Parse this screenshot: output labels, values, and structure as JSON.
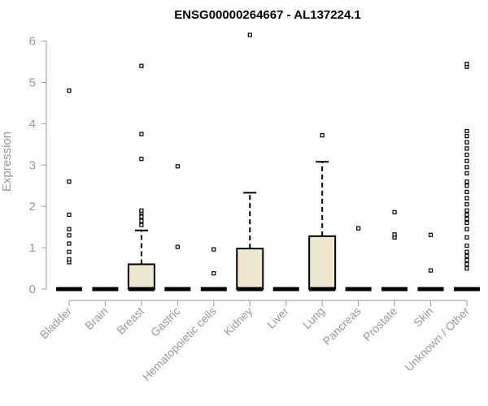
{
  "chart_data": {
    "type": "boxplot",
    "title": "ENSG00000264667 - AL137224.1",
    "ylabel": "Expression",
    "xlabel": "",
    "ylim": [
      0,
      6.2
    ],
    "yticks": [
      0,
      1,
      2,
      3,
      4,
      5,
      6
    ],
    "grid": false,
    "box_fill": "#efe7cf",
    "categories": [
      "Bladder",
      "Brain",
      "Breast",
      "Gastric",
      "Hematopoietic cells",
      "Kidney",
      "Liver",
      "Lung",
      "Pancreas",
      "Prostate",
      "Skin",
      "Unknown / Other"
    ],
    "boxes": [
      {
        "q1": 0,
        "median": 0,
        "q3": 0,
        "whisker_low": 0,
        "whisker_high": 0,
        "outliers": [
          0.65,
          0.72,
          0.9,
          1.1,
          1.3,
          1.45,
          1.8,
          2.6,
          4.8
        ]
      },
      {
        "q1": 0,
        "median": 0,
        "q3": 0,
        "whisker_low": 0,
        "whisker_high": 0,
        "outliers": []
      },
      {
        "q1": 0,
        "median": 0,
        "q3": 0.6,
        "whisker_low": 0,
        "whisker_high": 1.42,
        "outliers": [
          1.55,
          1.65,
          1.75,
          1.85,
          1.9,
          3.15,
          3.75,
          5.4
        ]
      },
      {
        "q1": 0,
        "median": 0,
        "q3": 0,
        "whisker_low": 0,
        "whisker_high": 0,
        "outliers": [
          1.02,
          2.97
        ]
      },
      {
        "q1": 0,
        "median": 0,
        "q3": 0,
        "whisker_low": 0,
        "whisker_high": 0,
        "outliers": [
          0.38,
          0.96
        ]
      },
      {
        "q1": 0,
        "median": 0,
        "q3": 0.98,
        "whisker_low": 0,
        "whisker_high": 2.33,
        "outliers": [
          6.15
        ]
      },
      {
        "q1": 0,
        "median": 0,
        "q3": 0,
        "whisker_low": 0,
        "whisker_high": 0,
        "outliers": []
      },
      {
        "q1": 0,
        "median": 0,
        "q3": 1.28,
        "whisker_low": 0,
        "whisker_high": 3.08,
        "outliers": [
          3.72
        ]
      },
      {
        "q1": 0,
        "median": 0,
        "q3": 0,
        "whisker_low": 0,
        "whisker_high": 0,
        "outliers": [
          1.47
        ]
      },
      {
        "q1": 0,
        "median": 0,
        "q3": 0,
        "whisker_low": 0,
        "whisker_high": 0,
        "outliers": [
          1.25,
          1.32,
          1.86
        ]
      },
      {
        "q1": 0,
        "median": 0,
        "q3": 0,
        "whisker_low": 0,
        "whisker_high": 0,
        "outliers": [
          0.45,
          1.31
        ]
      },
      {
        "q1": 0,
        "median": 0,
        "q3": 0,
        "whisker_low": 0,
        "whisker_high": 0,
        "outliers": [
          0.5,
          0.6,
          0.7,
          0.8,
          0.9,
          1.05,
          1.25,
          1.45,
          1.6,
          1.7,
          1.8,
          1.9,
          2.05,
          2.2,
          2.35,
          2.5,
          2.6,
          2.8,
          2.95,
          3.1,
          3.25,
          3.4,
          3.55,
          3.7,
          3.82,
          5.38,
          5.45
        ]
      }
    ]
  }
}
